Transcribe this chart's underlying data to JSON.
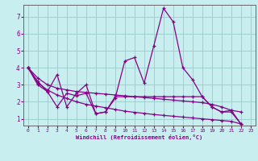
{
  "xlabel": "Windchill (Refroidissement éolien,°C)",
  "background_color": "#c8eef0",
  "grid_color": "#99cccc",
  "line_color": "#880088",
  "spine_color": "#666666",
  "xlim": [
    -0.5,
    23.5
  ],
  "ylim": [
    0.6,
    7.7
  ],
  "xticks": [
    0,
    1,
    2,
    3,
    4,
    5,
    6,
    7,
    8,
    9,
    10,
    11,
    12,
    13,
    14,
    15,
    16,
    17,
    18,
    19,
    20,
    21,
    22,
    23
  ],
  "yticks": [
    1,
    2,
    3,
    4,
    5,
    6,
    7
  ],
  "series1": [
    4.0,
    3.2,
    2.6,
    3.6,
    1.7,
    2.5,
    3.0,
    1.3,
    1.4,
    2.2,
    4.4,
    4.6,
    3.1,
    5.3,
    7.5,
    6.7,
    4.0,
    3.3,
    2.3,
    1.7,
    1.4,
    1.5,
    0.7
  ],
  "series2": [
    4.0,
    3.0,
    2.6,
    1.7,
    2.5,
    2.35,
    2.5,
    1.3,
    1.4,
    2.3,
    2.3,
    2.3,
    2.3,
    2.3,
    2.3,
    2.3,
    2.3,
    2.3,
    2.3,
    1.7,
    1.4,
    1.4,
    0.7
  ],
  "series3": [
    4.0,
    3.4,
    3.0,
    2.8,
    2.7,
    2.6,
    2.55,
    2.5,
    2.45,
    2.4,
    2.35,
    2.3,
    2.25,
    2.2,
    2.15,
    2.1,
    2.05,
    2.0,
    1.95,
    1.85,
    1.7,
    1.5,
    1.4
  ],
  "series4": [
    4.0,
    3.1,
    2.7,
    2.4,
    2.2,
    2.0,
    1.85,
    1.75,
    1.65,
    1.55,
    1.45,
    1.38,
    1.32,
    1.25,
    1.2,
    1.15,
    1.1,
    1.05,
    1.0,
    0.95,
    0.9,
    0.85,
    0.7
  ]
}
